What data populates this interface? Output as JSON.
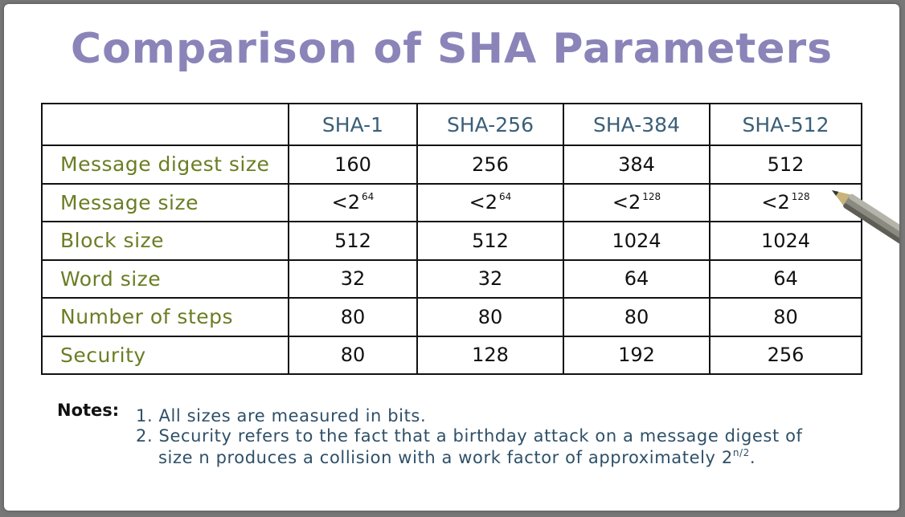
{
  "title": "Comparison of SHA Parameters",
  "table": {
    "columns": [
      "",
      "SHA-1",
      "SHA-256",
      "SHA-384",
      "SHA-512"
    ],
    "rows": [
      {
        "label": "Message digest size",
        "values": [
          "160",
          "256",
          "384",
          "512"
        ]
      },
      {
        "label": "Message size",
        "values": [
          {
            "base": "<2",
            "exp": "64"
          },
          {
            "base": "<2",
            "exp": "64"
          },
          {
            "base": "<2",
            "exp": "128"
          },
          {
            "base": "<2",
            "exp": "128"
          }
        ]
      },
      {
        "label": "Block size",
        "values": [
          "512",
          "512",
          "1024",
          "1024"
        ]
      },
      {
        "label": "Word size",
        "values": [
          "32",
          "32",
          "64",
          "64"
        ]
      },
      {
        "label": "Number of steps",
        "values": [
          "80",
          "80",
          "80",
          "80"
        ]
      },
      {
        "label": "Security",
        "values": [
          "80",
          "128",
          "192",
          "256"
        ]
      }
    ]
  },
  "notes": {
    "label": "Notes:",
    "items": [
      "1. All sizes are measured in bits.",
      "2. Security refers to the fact that a birthday attack on a message digest of",
      "size n produces a collision with a work factor of approximately 2"
    ],
    "exponent": "n/2",
    "trailing": "."
  },
  "colors": {
    "title": "#8a84b9",
    "header": "#3a5f79",
    "row_label": "#6b7d24",
    "notes": "#2e5068"
  }
}
